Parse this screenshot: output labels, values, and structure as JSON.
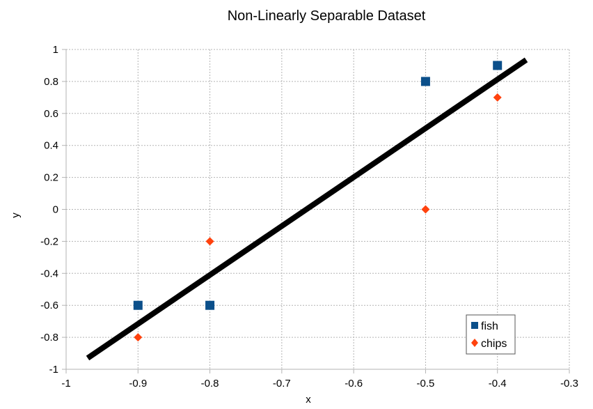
{
  "chart_data": {
    "type": "scatter",
    "title": "Non-Linearly Separable Dataset",
    "xlabel": "x",
    "ylabel": "y",
    "xlim": [
      -1,
      -0.3
    ],
    "ylim": [
      -1,
      1
    ],
    "x_ticks": [
      -1,
      -0.9,
      -0.8,
      -0.7,
      -0.6,
      -0.5,
      -0.4,
      -0.3
    ],
    "x_tick_labels": [
      "-1",
      "-0.9",
      "-0.8",
      "-0.7",
      "-0.6",
      "-0.5",
      "-0.4",
      "-0.3"
    ],
    "y_ticks": [
      -1,
      -0.8,
      -0.6,
      -0.4,
      -0.2,
      0,
      0.2,
      0.4,
      0.6,
      0.8,
      1
    ],
    "y_tick_labels": [
      "-1",
      "-0.8",
      "-0.6",
      "-0.4",
      "-0.2",
      "0",
      "0.2",
      "0.4",
      "0.6",
      "0.8",
      "1"
    ],
    "grid": true,
    "legend_position": "bottom-right",
    "series": [
      {
        "name": "fish",
        "marker": "square",
        "color": "#0b4f8a",
        "points": [
          {
            "x": -0.9,
            "y": -0.6
          },
          {
            "x": -0.8,
            "y": -0.6
          },
          {
            "x": -0.5,
            "y": 0.8
          },
          {
            "x": -0.4,
            "y": 0.9
          }
        ]
      },
      {
        "name": "chips",
        "marker": "diamond",
        "color": "#ff420e",
        "points": [
          {
            "x": -0.9,
            "y": -0.8
          },
          {
            "x": -0.8,
            "y": -0.2
          },
          {
            "x": -0.5,
            "y": 0.0
          },
          {
            "x": -0.4,
            "y": 0.7
          }
        ]
      }
    ],
    "decision_line": {
      "color": "#000000",
      "from": {
        "x": -0.97,
        "y": -0.93
      },
      "to": {
        "x": -0.36,
        "y": 0.935
      }
    }
  }
}
